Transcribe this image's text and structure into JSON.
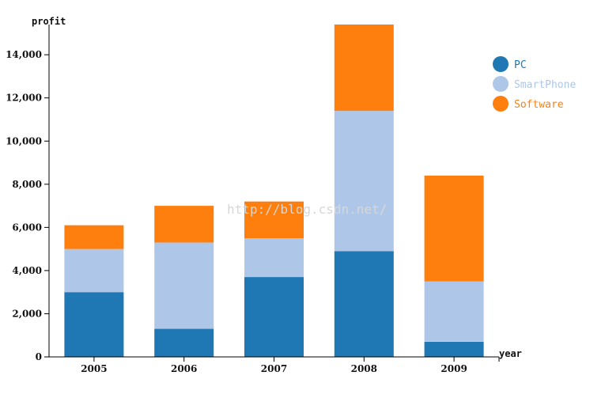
{
  "chart_data": {
    "type": "bar",
    "stacked": true,
    "categories": [
      "2005",
      "2006",
      "2007",
      "2008",
      "2009"
    ],
    "series": [
      {
        "name": "PC",
        "color": "#1f77b4",
        "values": [
          3000,
          1300,
          3700,
          4900,
          700
        ]
      },
      {
        "name": "SmartPhone",
        "color": "#aec7e8",
        "values": [
          2000,
          4000,
          1800,
          6500,
          2800
        ]
      },
      {
        "name": "Software",
        "color": "#ff7f0e",
        "values": [
          1100,
          1700,
          1700,
          4000,
          4900
        ]
      }
    ],
    "xlabel": "year",
    "ylabel": "profit",
    "ylim": [
      0,
      15400
    ],
    "yticks": [
      0,
      2000,
      4000,
      6000,
      8000,
      10000,
      12000,
      14000
    ],
    "ytick_labels": [
      "0",
      "2,000",
      "4,000",
      "6,000",
      "8,000",
      "10,000",
      "12,000",
      "14,000"
    ],
    "legend_position": "top-right",
    "grid": false
  },
  "watermark": "http://blog.csdn.net/"
}
